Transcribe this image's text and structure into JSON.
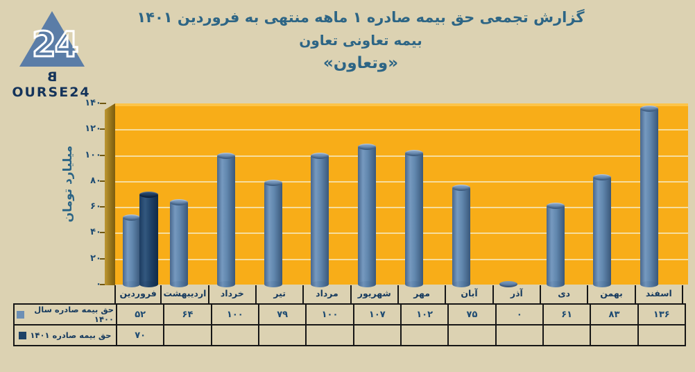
{
  "header": {
    "logo": {
      "triangle_text": "24",
      "brand_b": "B",
      "brand_rest": "OURSE24",
      "brand_full": "BOURSE24"
    },
    "title_line1": "گزارش تجمعی حق بیمه صادره ۱ ماهه منتهی به فروردین ۱۴۰۱",
    "title_line2": "بیمه تعاونی تعاون",
    "title_line3": "«وتعاون»"
  },
  "chart_data": {
    "type": "bar",
    "title": "گزارش تجمعی حق بیمه صادره ۱ ماهه منتهی به فروردین ۱۴۰۱ بیمه تعاونی تعاون «وتعاون»",
    "ylabel": "میلیارد تومان",
    "ylim": [
      0,
      140
    ],
    "yticks": [
      0,
      20,
      40,
      60,
      80,
      100,
      120,
      140
    ],
    "yticks_display": [
      "۰",
      "۲۰",
      "۴۰",
      "۶۰",
      "۸۰",
      "۱۰۰",
      "۱۲۰",
      "۱۴۰"
    ],
    "grid": true,
    "legend_position": "table-left",
    "plot_background": "#f8ad18",
    "page_background": "#dcd2b2",
    "categories": [
      "فروردین",
      "اردیبهشت",
      "خرداد",
      "تیر",
      "مرداد",
      "شهریور",
      "مهر",
      "آبان",
      "آذر",
      "دی",
      "بهمن",
      "اسفند"
    ],
    "series": [
      {
        "name": "حق بیمه صادره سال ۱۴۰۰",
        "color": "#6d8fb5",
        "values": [
          52,
          64,
          100,
          79,
          100,
          107,
          102,
          75,
          0,
          61,
          83,
          136
        ],
        "values_display": [
          "۵۲",
          "۶۴",
          "۱۰۰",
          "۷۹",
          "۱۰۰",
          "۱۰۷",
          "۱۰۲",
          "۷۵",
          "۰",
          "۶۱",
          "۸۳",
          "۱۳۶"
        ]
      },
      {
        "name": "حق بیمه صادره ۱۴۰۱",
        "color": "#1d4166",
        "values": [
          70,
          null,
          null,
          null,
          null,
          null,
          null,
          null,
          null,
          null,
          null,
          null
        ],
        "values_display": [
          "۷۰",
          "",
          "",
          "",
          "",
          "",
          "",
          "",
          "",
          "",
          "",
          ""
        ]
      }
    ]
  }
}
